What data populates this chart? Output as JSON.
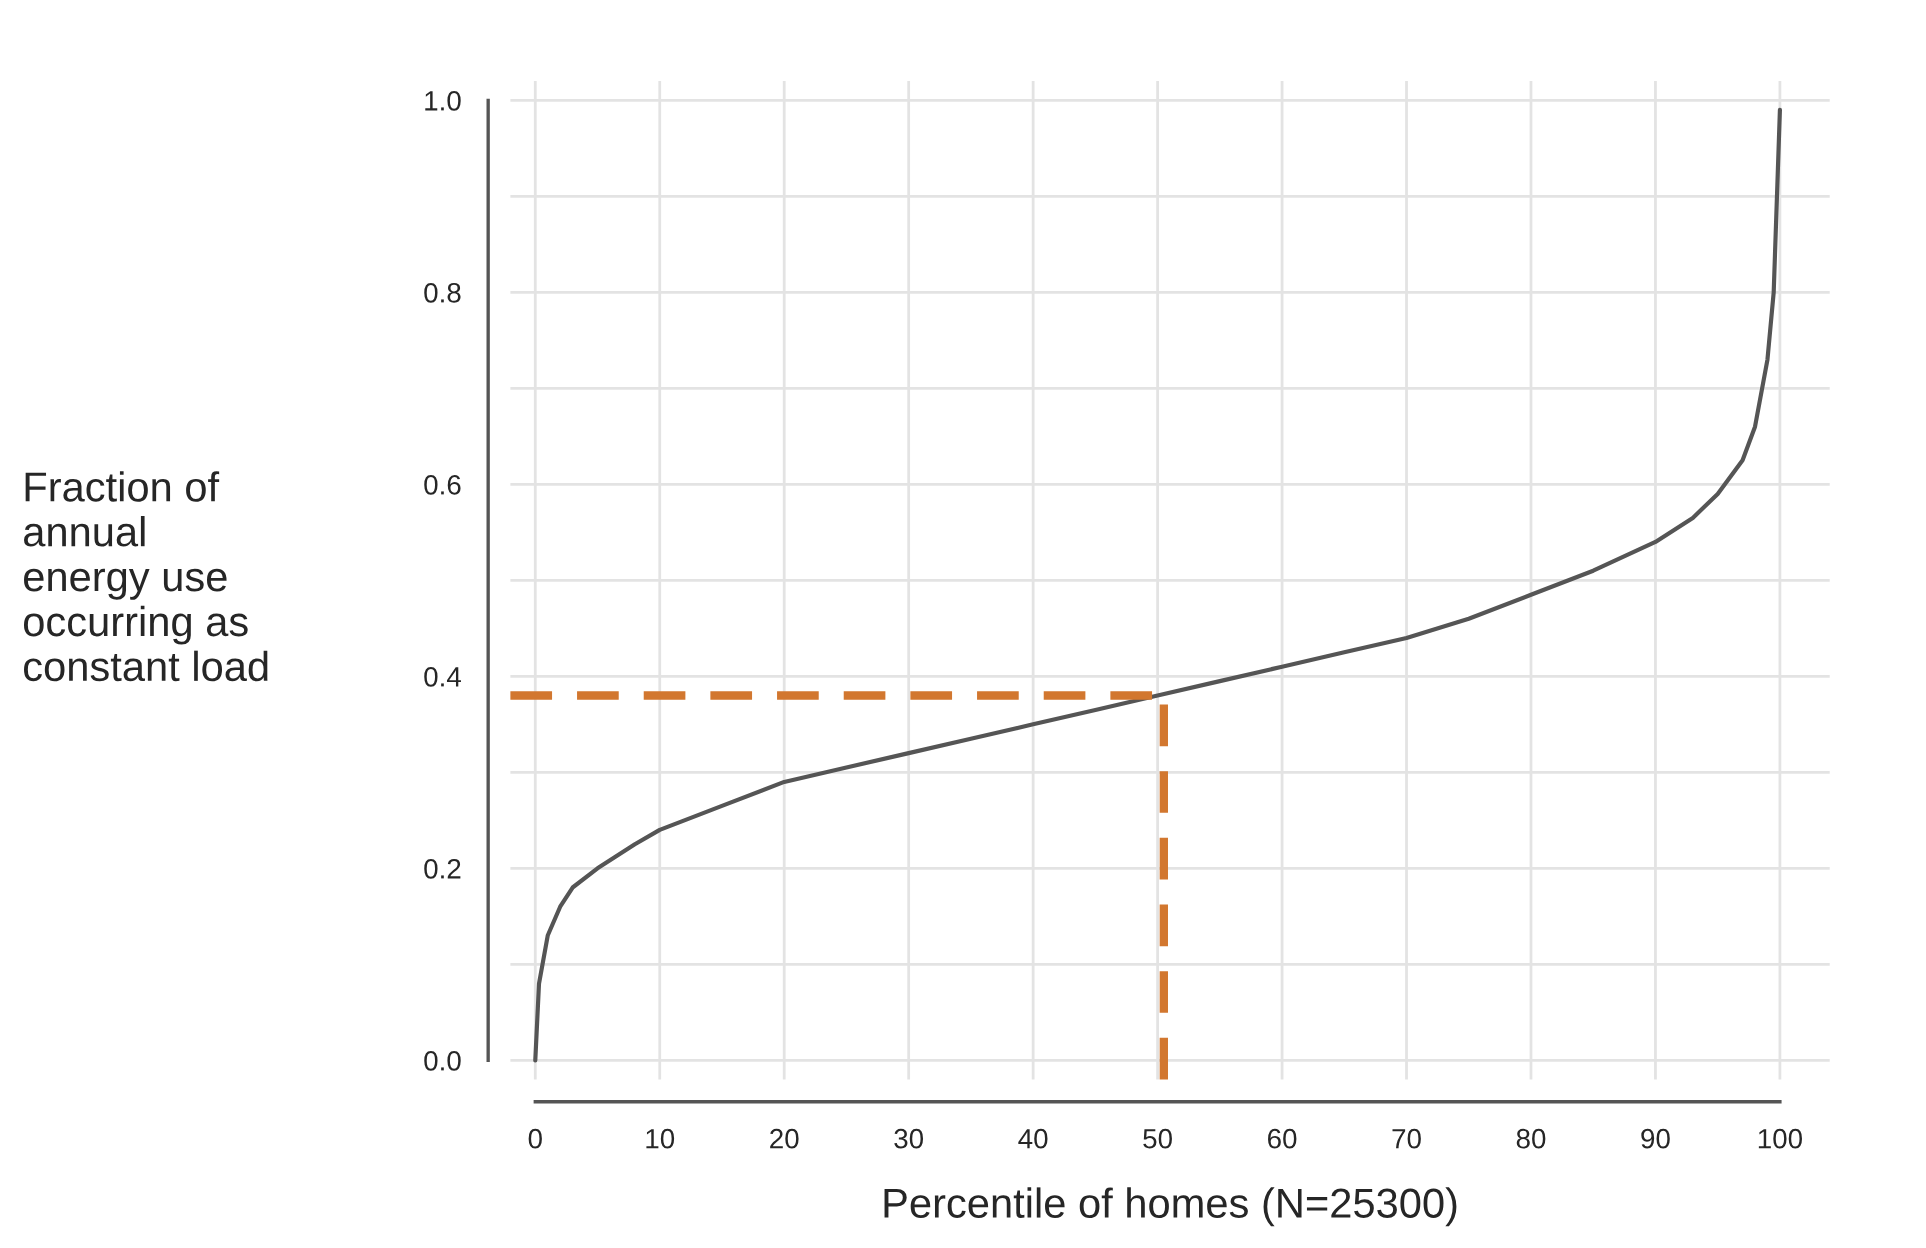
{
  "chart_data": {
    "type": "line",
    "xlabel": "Percentile of homes (N=25300)",
    "ylabel": "Fraction of\nannual\nenergy use\noccurring as\nconstant load",
    "x": [
      0,
      0.3,
      1,
      2,
      3,
      5,
      8,
      10,
      15,
      20,
      25,
      30,
      35,
      40,
      45,
      50,
      55,
      60,
      65,
      70,
      75,
      80,
      85,
      90,
      93,
      95,
      97,
      98,
      99,
      99.5,
      100
    ],
    "series": [
      {
        "color": "#555555",
        "values": [
          0,
          0.08,
          0.13,
          0.16,
          0.18,
          0.2,
          0.225,
          0.24,
          0.265,
          0.29,
          0.305,
          0.32,
          0.335,
          0.35,
          0.365,
          0.38,
          0.395,
          0.41,
          0.425,
          0.44,
          0.46,
          0.485,
          0.51,
          0.54,
          0.565,
          0.59,
          0.625,
          0.66,
          0.73,
          0.8,
          0.99
        ]
      }
    ],
    "xlim": [
      -2,
      104
    ],
    "ylim": [
      -0.02,
      1.02
    ],
    "xticks": [
      0,
      10,
      20,
      30,
      40,
      50,
      60,
      70,
      80,
      90,
      100
    ],
    "yticks": [
      {
        "value": 0,
        "label": "0.0"
      },
      {
        "value": 0.1,
        "label": null
      },
      {
        "value": 0.2,
        "label": "0.2"
      },
      {
        "value": 0.3,
        "label": null
      },
      {
        "value": 0.4,
        "label": "0.4"
      },
      {
        "value": 0.5,
        "label": null
      },
      {
        "value": 0.6,
        "label": "0.6"
      },
      {
        "value": 0.7,
        "label": null
      },
      {
        "value": 0.8,
        "label": "0.8"
      },
      {
        "value": 0.9,
        "label": null
      },
      {
        "value": 1,
        "label": "1.0"
      }
    ],
    "ref_lines": [
      {
        "axis": "y",
        "value": 0.38,
        "color": "#d2772f",
        "line_style": "dashed"
      },
      {
        "axis": "x",
        "value": 50.5,
        "color": "#d2772f",
        "line_style": "dashed"
      }
    ],
    "grid": true,
    "legend": false,
    "marker": "none",
    "line_style": "solid"
  }
}
